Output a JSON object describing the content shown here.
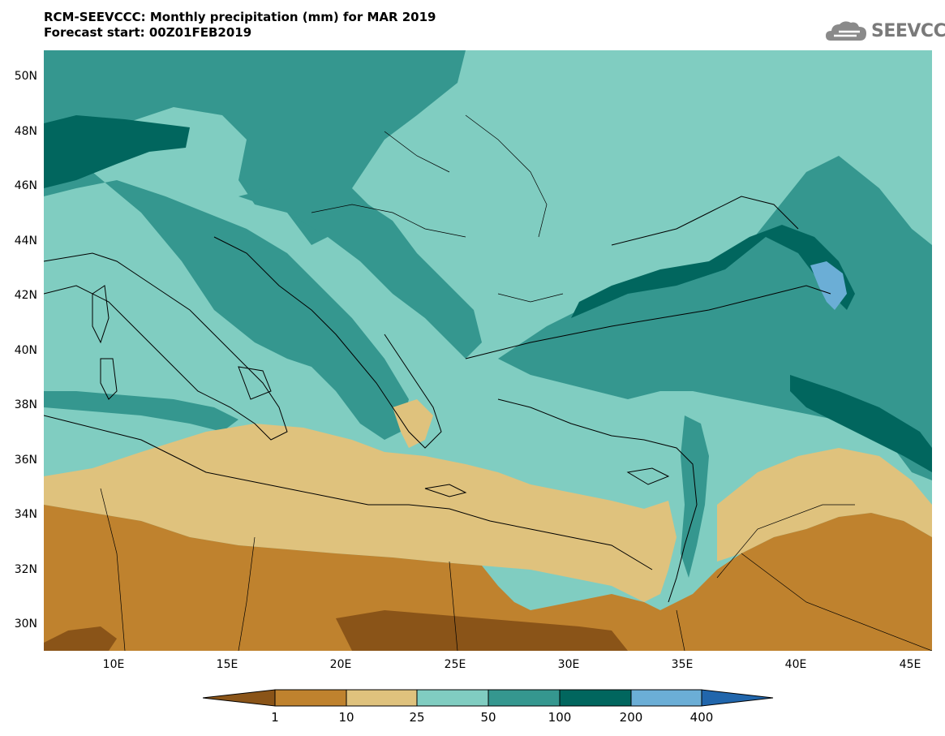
{
  "header": {
    "title_line1": "RCM-SEEVCCC: Monthly precipitation (mm) for MAR 2019",
    "title_line2": "Forecast start: 00Z01FEB2019"
  },
  "logo": {
    "text": "SEEVCCC",
    "icon": "cloud-icon"
  },
  "map": {
    "lon_range": [
      7,
      46
    ],
    "lat_range": [
      29,
      51
    ],
    "y_ticks": [
      "50N",
      "48N",
      "46N",
      "44N",
      "42N",
      "40N",
      "38N",
      "36N",
      "34N",
      "32N",
      "30N"
    ],
    "x_ticks": [
      "10E",
      "15E",
      "20E",
      "25E",
      "30E",
      "35E",
      "40E",
      "45E"
    ]
  },
  "legend": {
    "units": "mm",
    "bins": [
      {
        "color": "#8a5418"
      },
      {
        "color": "#bf822e"
      },
      {
        "color": "#dfc27d"
      },
      {
        "color": "#80cdc1"
      },
      {
        "color": "#35978f"
      },
      {
        "color": "#01665e"
      },
      {
        "color": "#6baed6"
      },
      {
        "color": "#2166ac"
      }
    ],
    "labels": [
      "1",
      "10",
      "25",
      "50",
      "100",
      "200",
      "400"
    ]
  }
}
